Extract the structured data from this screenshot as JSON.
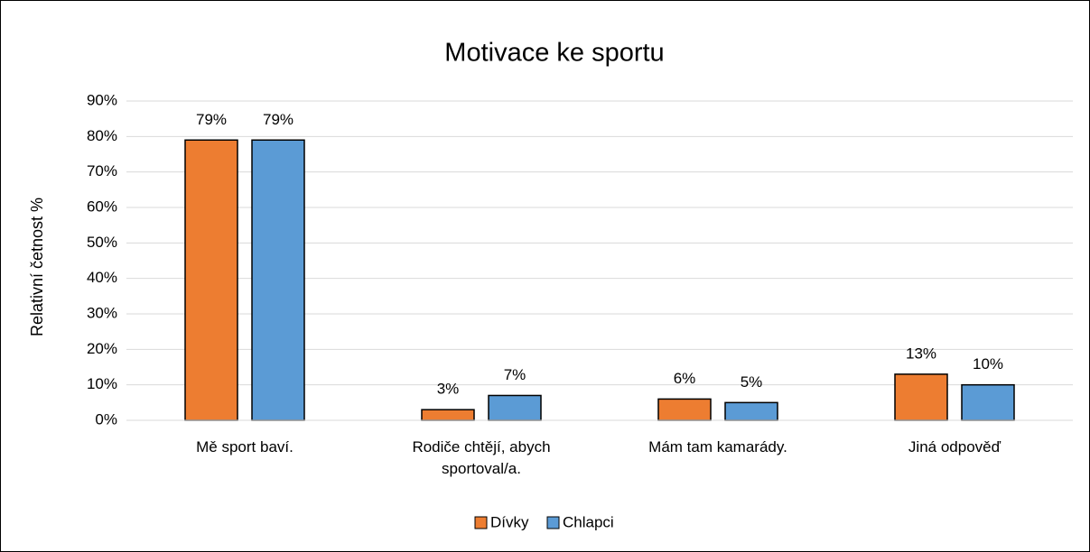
{
  "chart_data": {
    "type": "bar",
    "title": "Motivace ke sportu",
    "y_label": "Relativní četnost %",
    "categories": [
      "Mě sport baví.",
      "Rodiče chtějí, abych sportoval/a.",
      "Mám tam kamarády.",
      "Jiná odpověď"
    ],
    "series": [
      {
        "name": "Dívky",
        "color": "#ed7d31",
        "values": [
          79,
          3,
          6,
          13
        ],
        "value_labels": [
          "79%",
          "3%",
          "6%",
          "13%"
        ]
      },
      {
        "name": "Chlapci",
        "color": "#5b9bd5",
        "values": [
          79,
          7,
          5,
          10
        ],
        "value_labels": [
          "79%",
          "7%",
          "5%",
          "10%"
        ]
      }
    ],
    "ylim": [
      0,
      90
    ],
    "yticks": [
      {
        "value": 0,
        "label": "0%"
      },
      {
        "value": 10,
        "label": "10%"
      },
      {
        "value": 20,
        "label": "20%"
      },
      {
        "value": 30,
        "label": "30%"
      },
      {
        "value": 40,
        "label": "40%"
      },
      {
        "value": 50,
        "label": "50%"
      },
      {
        "value": 60,
        "label": "60%"
      },
      {
        "value": 70,
        "label": "70%"
      },
      {
        "value": 80,
        "label": "80%"
      },
      {
        "value": 90,
        "label": "90%"
      }
    ],
    "grid": true,
    "legend": "bottom"
  }
}
